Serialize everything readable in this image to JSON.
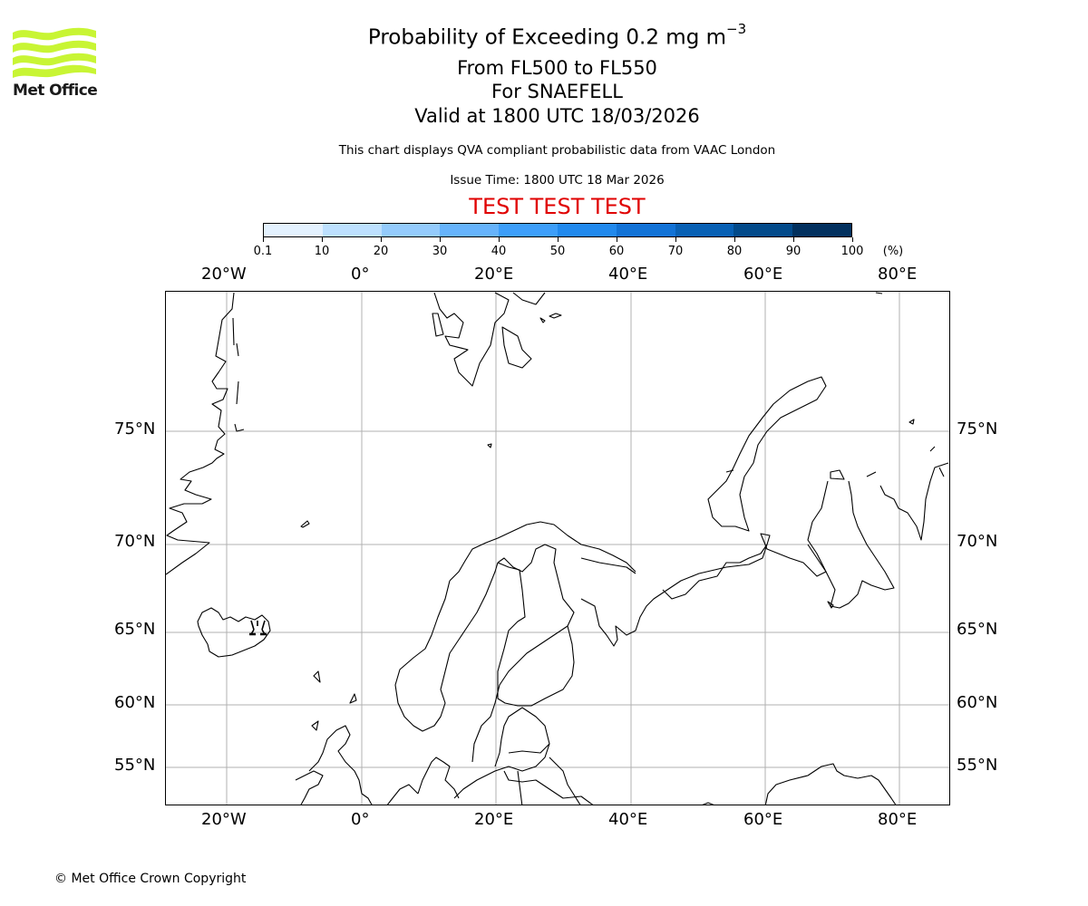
{
  "logo": {
    "text": "Met Office",
    "color": "#c8f534"
  },
  "title": {
    "main": "Probability of Exceeding 0.2 mg m",
    "main_superscript": "−3",
    "levels": "From FL500 to FL550",
    "volcano": "For SNAEFELL",
    "valid": "Valid at 1800 UTC 18/03/2026",
    "description": "This chart displays QVA compliant probabilistic data from VAAC London",
    "issue_time": "Issue Time: 1800 UTC 18 Mar 2026",
    "test_banner": "TEST TEST TEST",
    "test_color": "#e00000"
  },
  "colorbar": {
    "unit": "(%)",
    "ticks": [
      "0.1",
      "10",
      "20",
      "30",
      "40",
      "50",
      "60",
      "70",
      "80",
      "90",
      "100"
    ],
    "colors": [
      "#e3f1fe",
      "#bde0fe",
      "#94cbfc",
      "#66b3fb",
      "#3d9ef9",
      "#2189ed",
      "#1272d6",
      "#0860b4",
      "#034a8a",
      "#02305e"
    ]
  },
  "map": {
    "projection": "Plate Carree-like",
    "lon_ticks_top": [
      "20°W",
      "0°",
      "20°E",
      "40°E",
      "60°E",
      "80°E"
    ],
    "lon_ticks_bottom": [
      "20°W",
      "0°",
      "20°E",
      "40°E",
      "60°E",
      "80°E"
    ],
    "lat_ticks_left": [
      "75°N",
      "70°N",
      "65°N",
      "60°N",
      "55°N"
    ],
    "lat_ticks_right": [
      "75°N",
      "70°N",
      "65°N",
      "60°N",
      "55°N"
    ],
    "volcano_marker": {
      "name": "SNAEFELL",
      "location": "Eastern Iceland",
      "symbol": "volcano-icon"
    },
    "ash_probability_contours": "none visible"
  },
  "footer": {
    "copyright": "© Met Office Crown Copyright"
  }
}
